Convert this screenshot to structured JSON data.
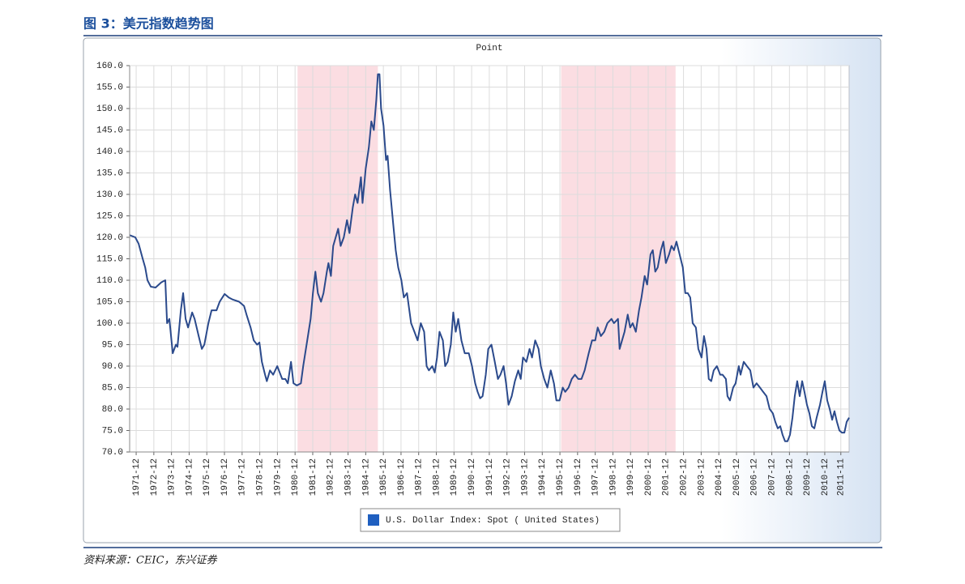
{
  "header": {
    "title": "图 3：美元指数趋势图"
  },
  "footer": {
    "source": "资料来源：CEIC，东兴证券"
  },
  "chart_data": {
    "type": "line",
    "title": "Point",
    "grid": true,
    "xlim": [
      1971.55,
      2012.3
    ],
    "ylim": [
      70,
      160
    ],
    "yticks": [
      {
        "value": 70,
        "label": "70.0"
      },
      {
        "value": 75,
        "label": "75.0"
      },
      {
        "value": 80,
        "label": "80.0"
      },
      {
        "value": 85,
        "label": "85.0"
      },
      {
        "value": 90,
        "label": "90.0"
      },
      {
        "value": 95,
        "label": "95.0"
      },
      {
        "value": 100,
        "label": "100.0"
      },
      {
        "value": 105,
        "label": "105.0"
      },
      {
        "value": 110,
        "label": "110.0"
      },
      {
        "value": 115,
        "label": "115.0"
      },
      {
        "value": 120,
        "label": "120.0"
      },
      {
        "value": 125,
        "label": "125.0"
      },
      {
        "value": 130,
        "label": "130.0"
      },
      {
        "value": 135,
        "label": "135.0"
      },
      {
        "value": 140,
        "label": "140.0"
      },
      {
        "value": 145,
        "label": "145.0"
      },
      {
        "value": 150,
        "label": "150.0"
      },
      {
        "value": 155,
        "label": "155.0"
      },
      {
        "value": 160,
        "label": "160.0"
      }
    ],
    "xticks": [
      {
        "value": 1971.92,
        "label": "1971-12"
      },
      {
        "value": 1972.92,
        "label": "1972-12"
      },
      {
        "value": 1973.92,
        "label": "1973-12"
      },
      {
        "value": 1974.92,
        "label": "1974-12"
      },
      {
        "value": 1975.92,
        "label": "1975-12"
      },
      {
        "value": 1976.92,
        "label": "1976-12"
      },
      {
        "value": 1977.92,
        "label": "1977-12"
      },
      {
        "value": 1978.92,
        "label": "1978-12"
      },
      {
        "value": 1979.92,
        "label": "1979-12"
      },
      {
        "value": 1980.92,
        "label": "1980-12"
      },
      {
        "value": 1981.92,
        "label": "1981-12"
      },
      {
        "value": 1982.92,
        "label": "1982-12"
      },
      {
        "value": 1983.92,
        "label": "1983-12"
      },
      {
        "value": 1984.92,
        "label": "1984-12"
      },
      {
        "value": 1985.92,
        "label": "1985-12"
      },
      {
        "value": 1986.92,
        "label": "1986-12"
      },
      {
        "value": 1987.92,
        "label": "1987-12"
      },
      {
        "value": 1988.92,
        "label": "1988-12"
      },
      {
        "value": 1989.92,
        "label": "1989-12"
      },
      {
        "value": 1990.92,
        "label": "1990-12"
      },
      {
        "value": 1991.92,
        "label": "1991-12"
      },
      {
        "value": 1992.92,
        "label": "1992-12"
      },
      {
        "value": 1993.92,
        "label": "1993-12"
      },
      {
        "value": 1994.92,
        "label": "1994-12"
      },
      {
        "value": 1995.92,
        "label": "1995-12"
      },
      {
        "value": 1996.92,
        "label": "1996-12"
      },
      {
        "value": 1997.92,
        "label": "1997-12"
      },
      {
        "value": 1998.92,
        "label": "1998-12"
      },
      {
        "value": 1999.92,
        "label": "1999-12"
      },
      {
        "value": 2000.92,
        "label": "2000-12"
      },
      {
        "value": 2001.92,
        "label": "2001-12"
      },
      {
        "value": 2002.92,
        "label": "2002-12"
      },
      {
        "value": 2003.92,
        "label": "2003-12"
      },
      {
        "value": 2004.92,
        "label": "2004-12"
      },
      {
        "value": 2005.92,
        "label": "2005-12"
      },
      {
        "value": 2006.92,
        "label": "2006-12"
      },
      {
        "value": 2007.92,
        "label": "2007-12"
      },
      {
        "value": 2008.92,
        "label": "2008-12"
      },
      {
        "value": 2009.92,
        "label": "2009-12"
      },
      {
        "value": 2010.92,
        "label": "2010-12"
      },
      {
        "value": 2011.83,
        "label": "2011-11"
      }
    ],
    "shaded_ranges": [
      [
        1981.06,
        1985.61
      ],
      [
        1995.99,
        2002.47
      ]
    ],
    "shade_color": "#fbdde2",
    "x": [
      1971.55,
      1971.87,
      1972.06,
      1972.29,
      1972.43,
      1972.56,
      1972.75,
      1973.02,
      1973.34,
      1973.57,
      1973.67,
      1973.8,
      1973.99,
      1974.17,
      1974.26,
      1974.45,
      1974.58,
      1974.72,
      1974.86,
      1975.09,
      1975.23,
      1975.46,
      1975.64,
      1975.78,
      1976.01,
      1976.19,
      1976.47,
      1976.65,
      1976.93,
      1977.16,
      1977.39,
      1977.75,
      1978.03,
      1978.17,
      1978.4,
      1978.58,
      1978.77,
      1978.9,
      1979.04,
      1979.22,
      1979.32,
      1979.5,
      1979.68,
      1979.91,
      1980.05,
      1980.19,
      1980.37,
      1980.51,
      1980.69,
      1980.83,
      1981.02,
      1981.25,
      1981.38,
      1981.61,
      1981.8,
      1981.93,
      1982.07,
      1982.21,
      1982.39,
      1982.53,
      1982.72,
      1982.81,
      1982.95,
      1983.08,
      1983.22,
      1983.36,
      1983.5,
      1983.68,
      1983.86,
      1984.0,
      1984.19,
      1984.32,
      1984.46,
      1984.65,
      1984.74,
      1984.92,
      1985.1,
      1985.24,
      1985.38,
      1985.52,
      1985.61,
      1985.7,
      1985.79,
      1985.93,
      1986.07,
      1986.16,
      1986.3,
      1986.48,
      1986.62,
      1986.76,
      1986.94,
      1987.08,
      1987.26,
      1987.49,
      1987.68,
      1987.86,
      1988.04,
      1988.23,
      1988.37,
      1988.5,
      1988.69,
      1988.83,
      1988.96,
      1989.1,
      1989.29,
      1989.42,
      1989.56,
      1989.74,
      1989.88,
      1990.02,
      1990.16,
      1990.34,
      1990.53,
      1990.76,
      1990.94,
      1991.12,
      1991.26,
      1991.4,
      1991.54,
      1991.72,
      1991.86,
      1992.04,
      1992.23,
      1992.41,
      1992.55,
      1992.73,
      1992.87,
      1993.01,
      1993.19,
      1993.37,
      1993.56,
      1993.7,
      1993.83,
      1994.02,
      1994.2,
      1994.34,
      1994.52,
      1994.71,
      1994.84,
      1995.03,
      1995.21,
      1995.4,
      1995.58,
      1995.72,
      1995.9,
      1996.08,
      1996.22,
      1996.41,
      1996.59,
      1996.77,
      1996.96,
      1997.14,
      1997.32,
      1997.55,
      1997.74,
      1997.92,
      1998.06,
      1998.24,
      1998.43,
      1998.61,
      1998.84,
      1998.98,
      1999.21,
      1999.3,
      1999.44,
      1999.58,
      1999.76,
      1999.9,
      2000.04,
      2000.22,
      2000.4,
      2000.54,
      2000.72,
      2000.86,
      2001.05,
      2001.18,
      2001.32,
      2001.46,
      2001.64,
      2001.78,
      2001.92,
      2002.1,
      2002.24,
      2002.38,
      2002.52,
      2002.7,
      2002.88,
      2003.02,
      2003.16,
      2003.3,
      2003.44,
      2003.62,
      2003.76,
      2003.94,
      2004.08,
      2004.22,
      2004.35,
      2004.49,
      2004.63,
      2004.81,
      2005.0,
      2005.13,
      2005.32,
      2005.41,
      2005.55,
      2005.73,
      2005.87,
      2006.05,
      2006.15,
      2006.33,
      2006.51,
      2006.7,
      2006.88,
      2007.06,
      2007.25,
      2007.43,
      2007.62,
      2007.8,
      2007.98,
      2008.12,
      2008.26,
      2008.4,
      2008.53,
      2008.67,
      2008.81,
      2008.95,
      2009.09,
      2009.22,
      2009.36,
      2009.5,
      2009.64,
      2009.77,
      2009.91,
      2010.05,
      2010.19,
      2010.33,
      2010.46,
      2010.65,
      2010.79,
      2010.92,
      2011.06,
      2011.2,
      2011.34,
      2011.47,
      2011.61,
      2011.75,
      2011.89,
      2012.03,
      2012.16,
      2012.3
    ],
    "series": [
      {
        "name": "U.S. Dollar Index: Spot ( United States)",
        "color": "#2b4a8c",
        "legend_color": "#1f5fc0",
        "values": [
          120.5,
          120,
          118.5,
          115,
          113,
          110,
          108.5,
          108.3,
          109.5,
          110,
          100,
          101,
          93,
          95,
          94.5,
          103,
          107,
          101,
          99,
          102.5,
          101,
          97,
          94,
          95,
          100,
          103,
          103,
          105,
          106.8,
          106,
          105.5,
          105,
          104,
          102,
          99,
          96,
          95,
          95.5,
          91,
          88,
          86.5,
          89,
          88,
          90,
          88.5,
          87,
          87,
          86,
          91,
          86,
          85.5,
          86,
          90,
          96,
          101,
          107,
          112,
          107,
          105,
          107,
          112,
          114,
          111,
          118,
          120,
          122,
          118,
          120,
          124,
          121,
          127,
          130,
          128,
          134,
          128,
          136,
          141,
          147,
          145,
          152,
          158,
          158,
          150,
          146,
          138,
          139,
          131,
          123,
          117,
          113,
          110,
          106,
          107,
          100,
          98,
          96,
          100,
          98,
          90,
          89,
          90,
          88.5,
          92,
          98,
          96,
          90,
          91,
          95,
          102.5,
          98,
          101,
          96,
          93,
          93,
          90,
          86,
          84,
          82.5,
          83,
          88,
          94,
          95,
          91,
          87,
          88,
          90,
          86,
          81,
          83,
          86.5,
          89,
          87,
          92,
          91,
          94,
          92,
          96,
          94,
          90,
          87,
          85,
          89,
          86,
          82,
          82,
          85,
          84,
          85,
          87,
          88,
          87,
          87,
          89,
          93,
          96,
          96,
          99,
          97,
          98,
          100,
          101,
          100,
          101,
          94,
          96,
          98,
          102,
          99,
          100,
          98,
          103,
          106,
          111,
          109,
          116,
          117,
          112,
          113,
          117,
          119,
          114,
          116,
          118,
          117,
          119,
          116,
          113,
          107,
          107,
          106,
          100,
          99,
          94,
          92,
          97,
          94,
          87,
          86.5,
          89,
          90,
          88,
          88,
          87,
          83,
          82,
          85,
          86,
          90,
          88,
          91,
          90,
          89,
          85,
          86,
          85,
          84,
          83,
          80,
          79,
          77,
          75.5,
          76,
          74,
          72.5,
          72.5,
          74,
          78,
          83,
          86.5,
          83,
          86.5,
          84,
          81,
          79,
          76,
          75.5,
          78,
          81,
          84,
          86.5,
          82,
          80,
          77.5,
          79.5,
          77,
          75,
          74.5,
          74.5,
          77,
          78
        ]
      }
    ]
  }
}
